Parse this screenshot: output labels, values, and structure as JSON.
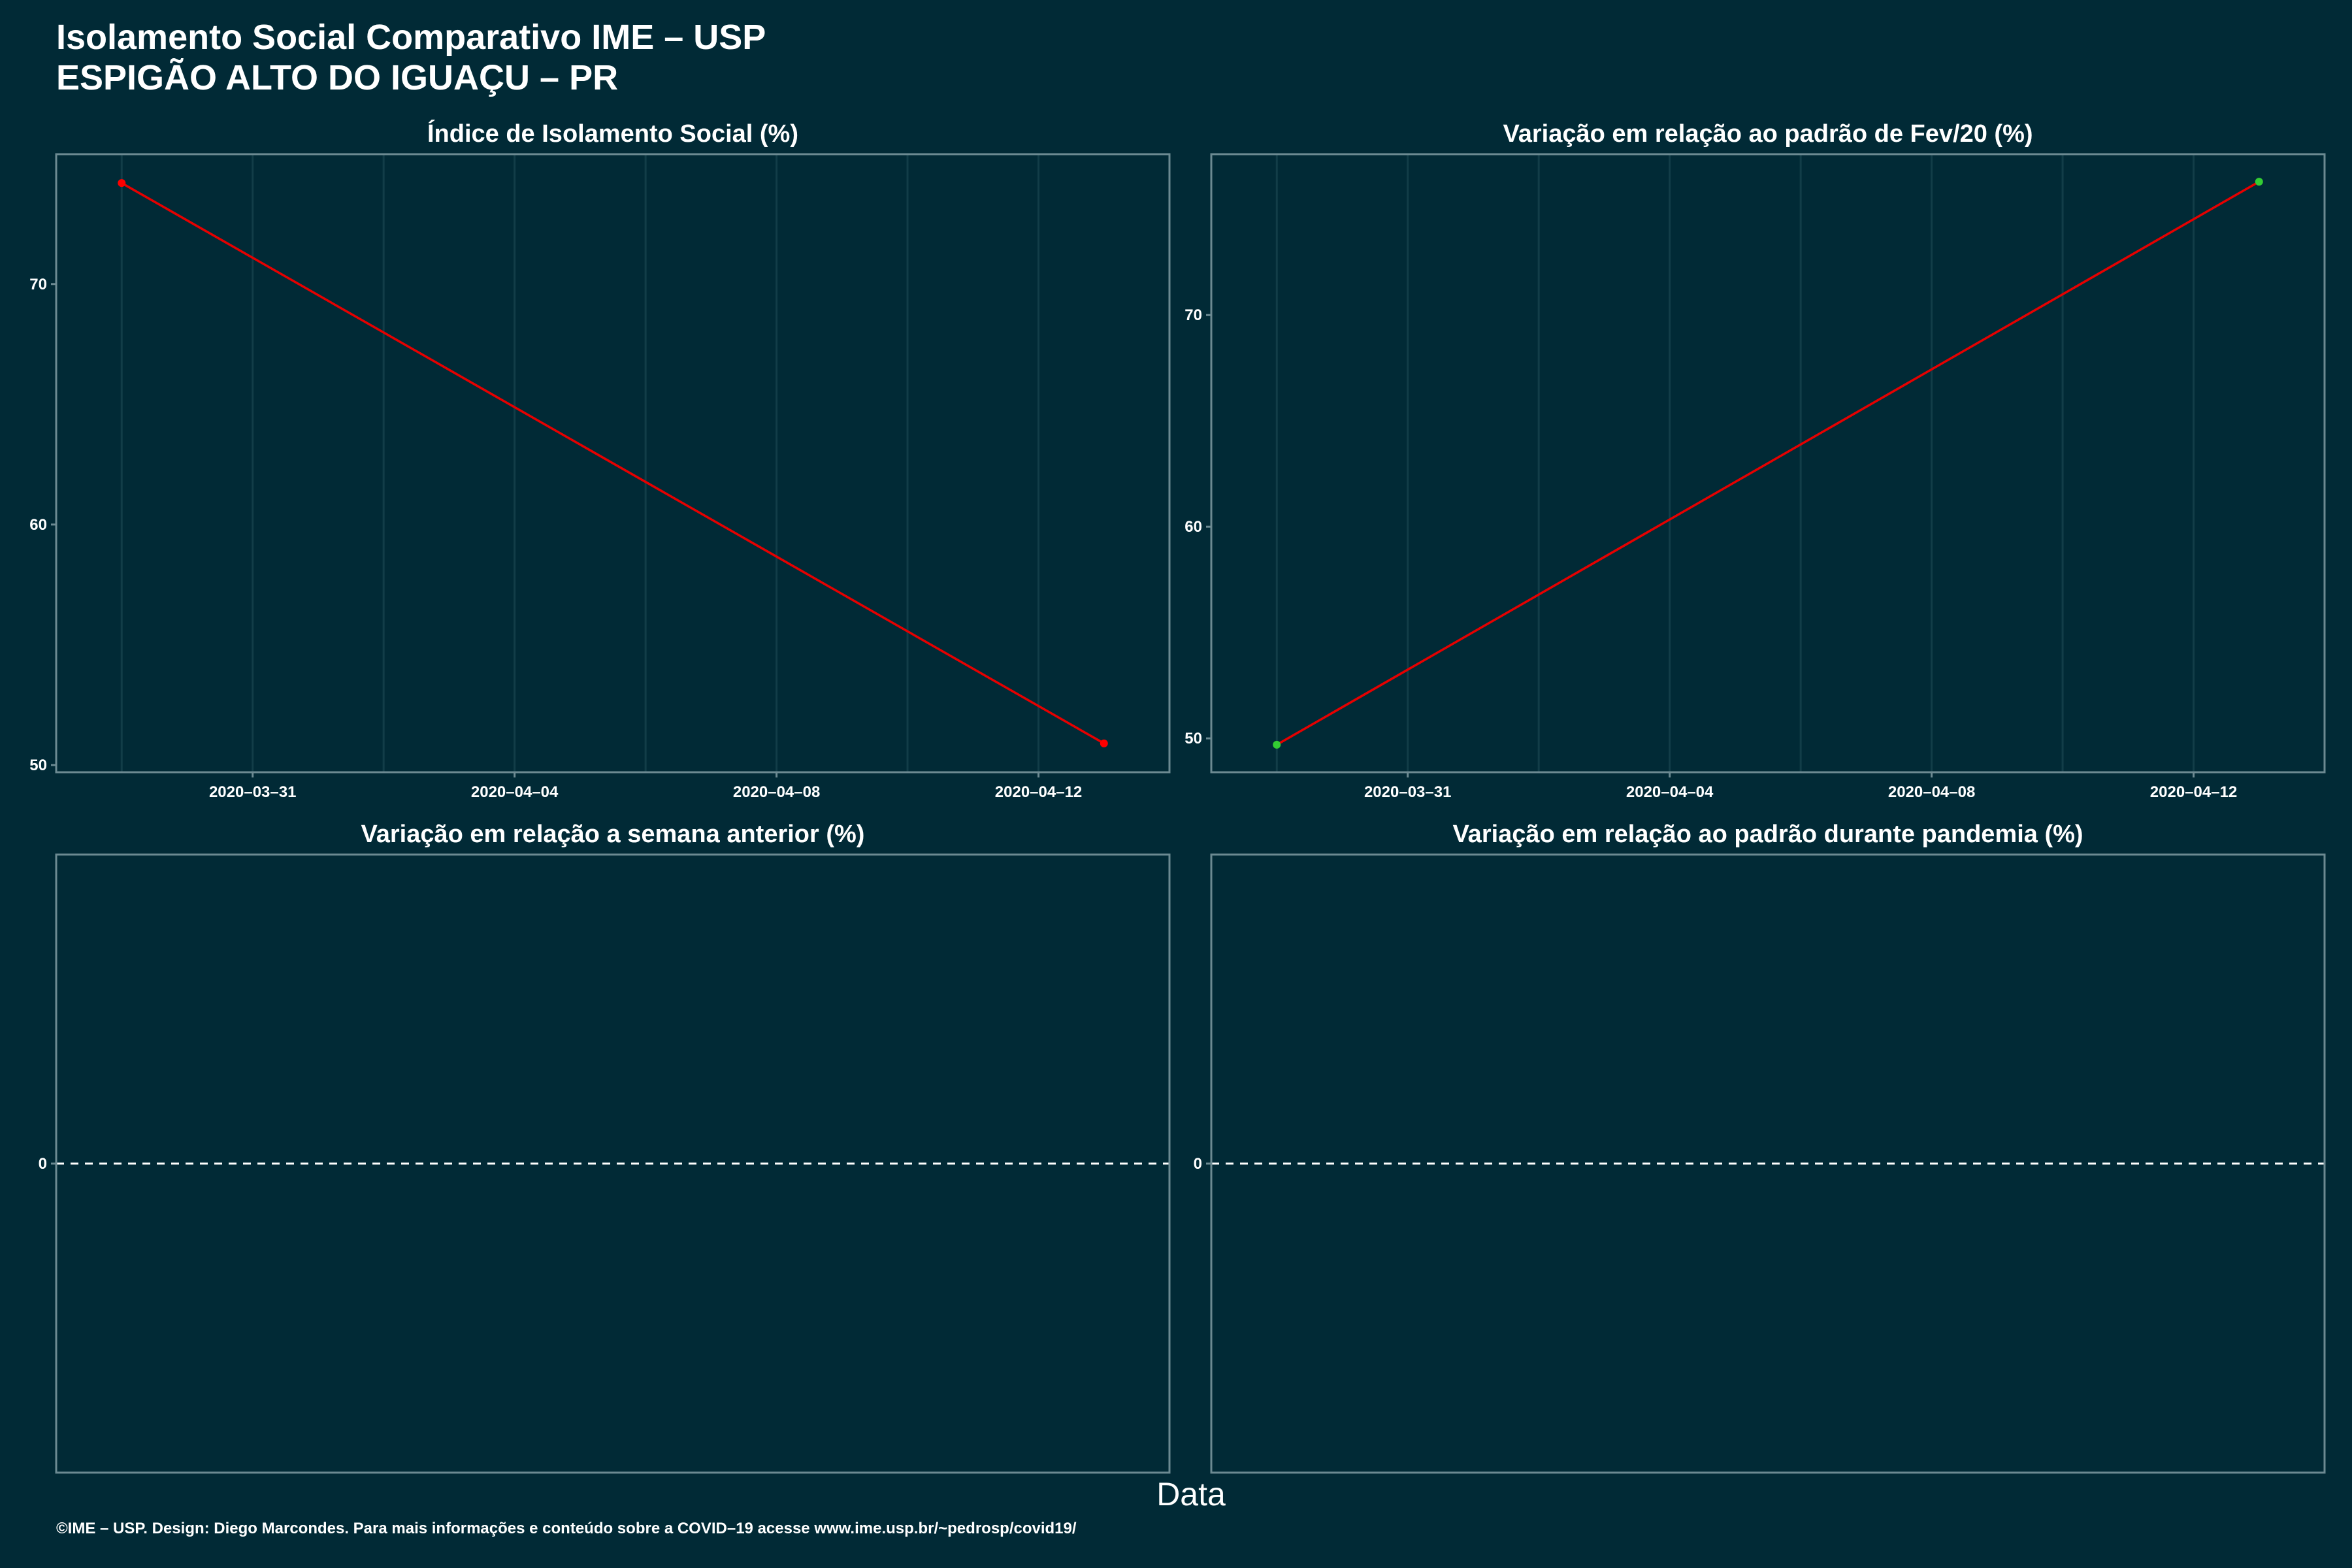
{
  "title": {
    "line1": "Isolamento Social Comparativo IME – USP",
    "line2": "ESPIGÃO ALTO DO IGUAÇU – PR"
  },
  "xlabel": "Data",
  "footer": "©IME – USP. Design: Diego Marcondes. Para mais informações e conteúdo sobre a COVID–19 acesse www.ime.usp.br/~pedrosp/covid19/",
  "colors": {
    "background": "#012a36",
    "line": "#e60000",
    "point_red": "#ff0000",
    "point_green": "#33cc33",
    "panel_border": "#6c8a92",
    "grid": "#123d48",
    "zero_line": "#ffffff"
  },
  "chart_data": [
    {
      "type": "line",
      "title": "Índice de Isolamento Social (%)",
      "x_ticks": [
        "2020–03–31",
        "2020–04–04",
        "2020–04–08",
        "2020–04–12"
      ],
      "x_tick_dates": [
        "2020-03-31",
        "2020-04-04",
        "2020-04-08",
        "2020-04-12"
      ],
      "xlim": [
        "2020-03-28",
        "2020-04-14"
      ],
      "y_ticks": [
        50,
        60,
        70
      ],
      "ylim": [
        49.7,
        75.4
      ],
      "points": [
        {
          "x": "2020-03-29",
          "y": 74.2,
          "color": "red"
        },
        {
          "x": "2020-04-13",
          "y": 50.9,
          "color": "red"
        }
      ],
      "grid": true
    },
    {
      "type": "line",
      "title": "Variação em relação ao padrão de Fev/20 (%)",
      "x_ticks": [
        "2020–03–31",
        "2020–04–04",
        "2020–04–08",
        "2020–04–12"
      ],
      "x_tick_dates": [
        "2020-03-31",
        "2020-04-04",
        "2020-04-08",
        "2020-04-12"
      ],
      "xlim": [
        "2020-03-28",
        "2020-04-14"
      ],
      "y_ticks": [
        50,
        60,
        70
      ],
      "ylim": [
        48.4,
        77.6
      ],
      "points": [
        {
          "x": "2020-03-29",
          "y": 49.7,
          "color": "green"
        },
        {
          "x": "2020-04-13",
          "y": 76.3,
          "color": "green"
        }
      ],
      "grid": true
    },
    {
      "type": "line",
      "title": "Variação em relação a semana anterior (%)",
      "y_ticks": [
        0
      ],
      "ylim": [
        -1,
        1
      ],
      "points": [],
      "zero_line": true,
      "grid": false
    },
    {
      "type": "line",
      "title": "Variação em relação ao padrão durante pandemia (%)",
      "y_ticks": [
        0
      ],
      "ylim": [
        -1,
        1
      ],
      "points": [],
      "zero_line": true,
      "grid": false
    }
  ]
}
